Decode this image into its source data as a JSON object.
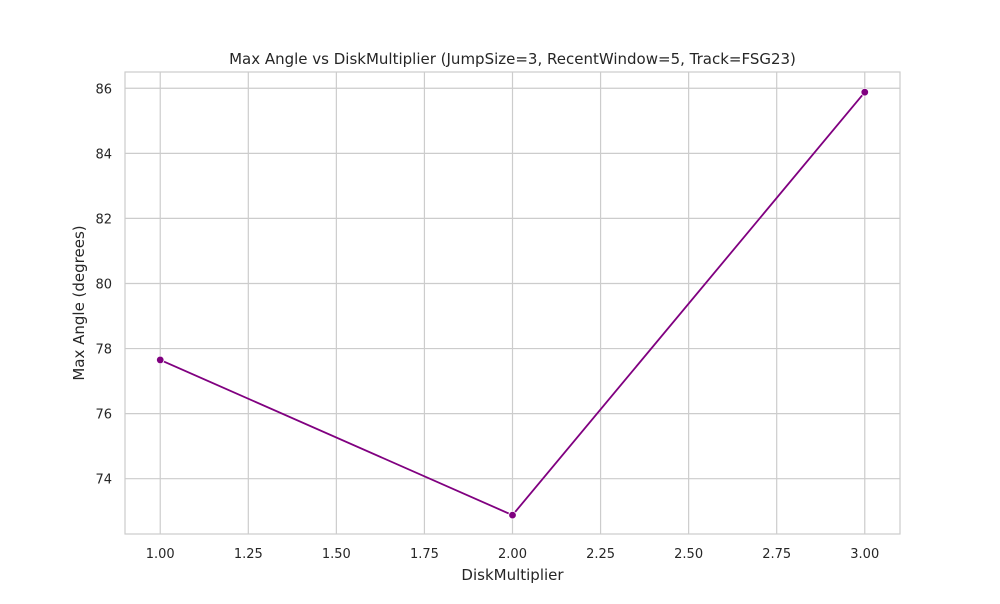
{
  "chart_data": {
    "type": "line",
    "title": "Max Angle vs DiskMultiplier (JumpSize=3, RecentWindow=5, Track=FSG23)",
    "xlabel": "DiskMultiplier",
    "ylabel": "Max Angle (degrees)",
    "xlim": [
      0.9,
      3.1
    ],
    "ylim": [
      72.3,
      86.5
    ],
    "xticks": [
      "1.00",
      "1.25",
      "1.50",
      "1.75",
      "2.00",
      "2.25",
      "2.50",
      "2.75",
      "3.00"
    ],
    "yticks": [
      "74",
      "76",
      "78",
      "80",
      "82",
      "84",
      "86"
    ],
    "grid": true,
    "series": [
      {
        "x": [
          1.0,
          2.0,
          3.0
        ],
        "y": [
          77.65,
          72.88,
          85.88
        ]
      }
    ],
    "colors": {
      "line": "#800080",
      "grid": "#cccccc",
      "axes_edge": "#cccccc"
    }
  }
}
